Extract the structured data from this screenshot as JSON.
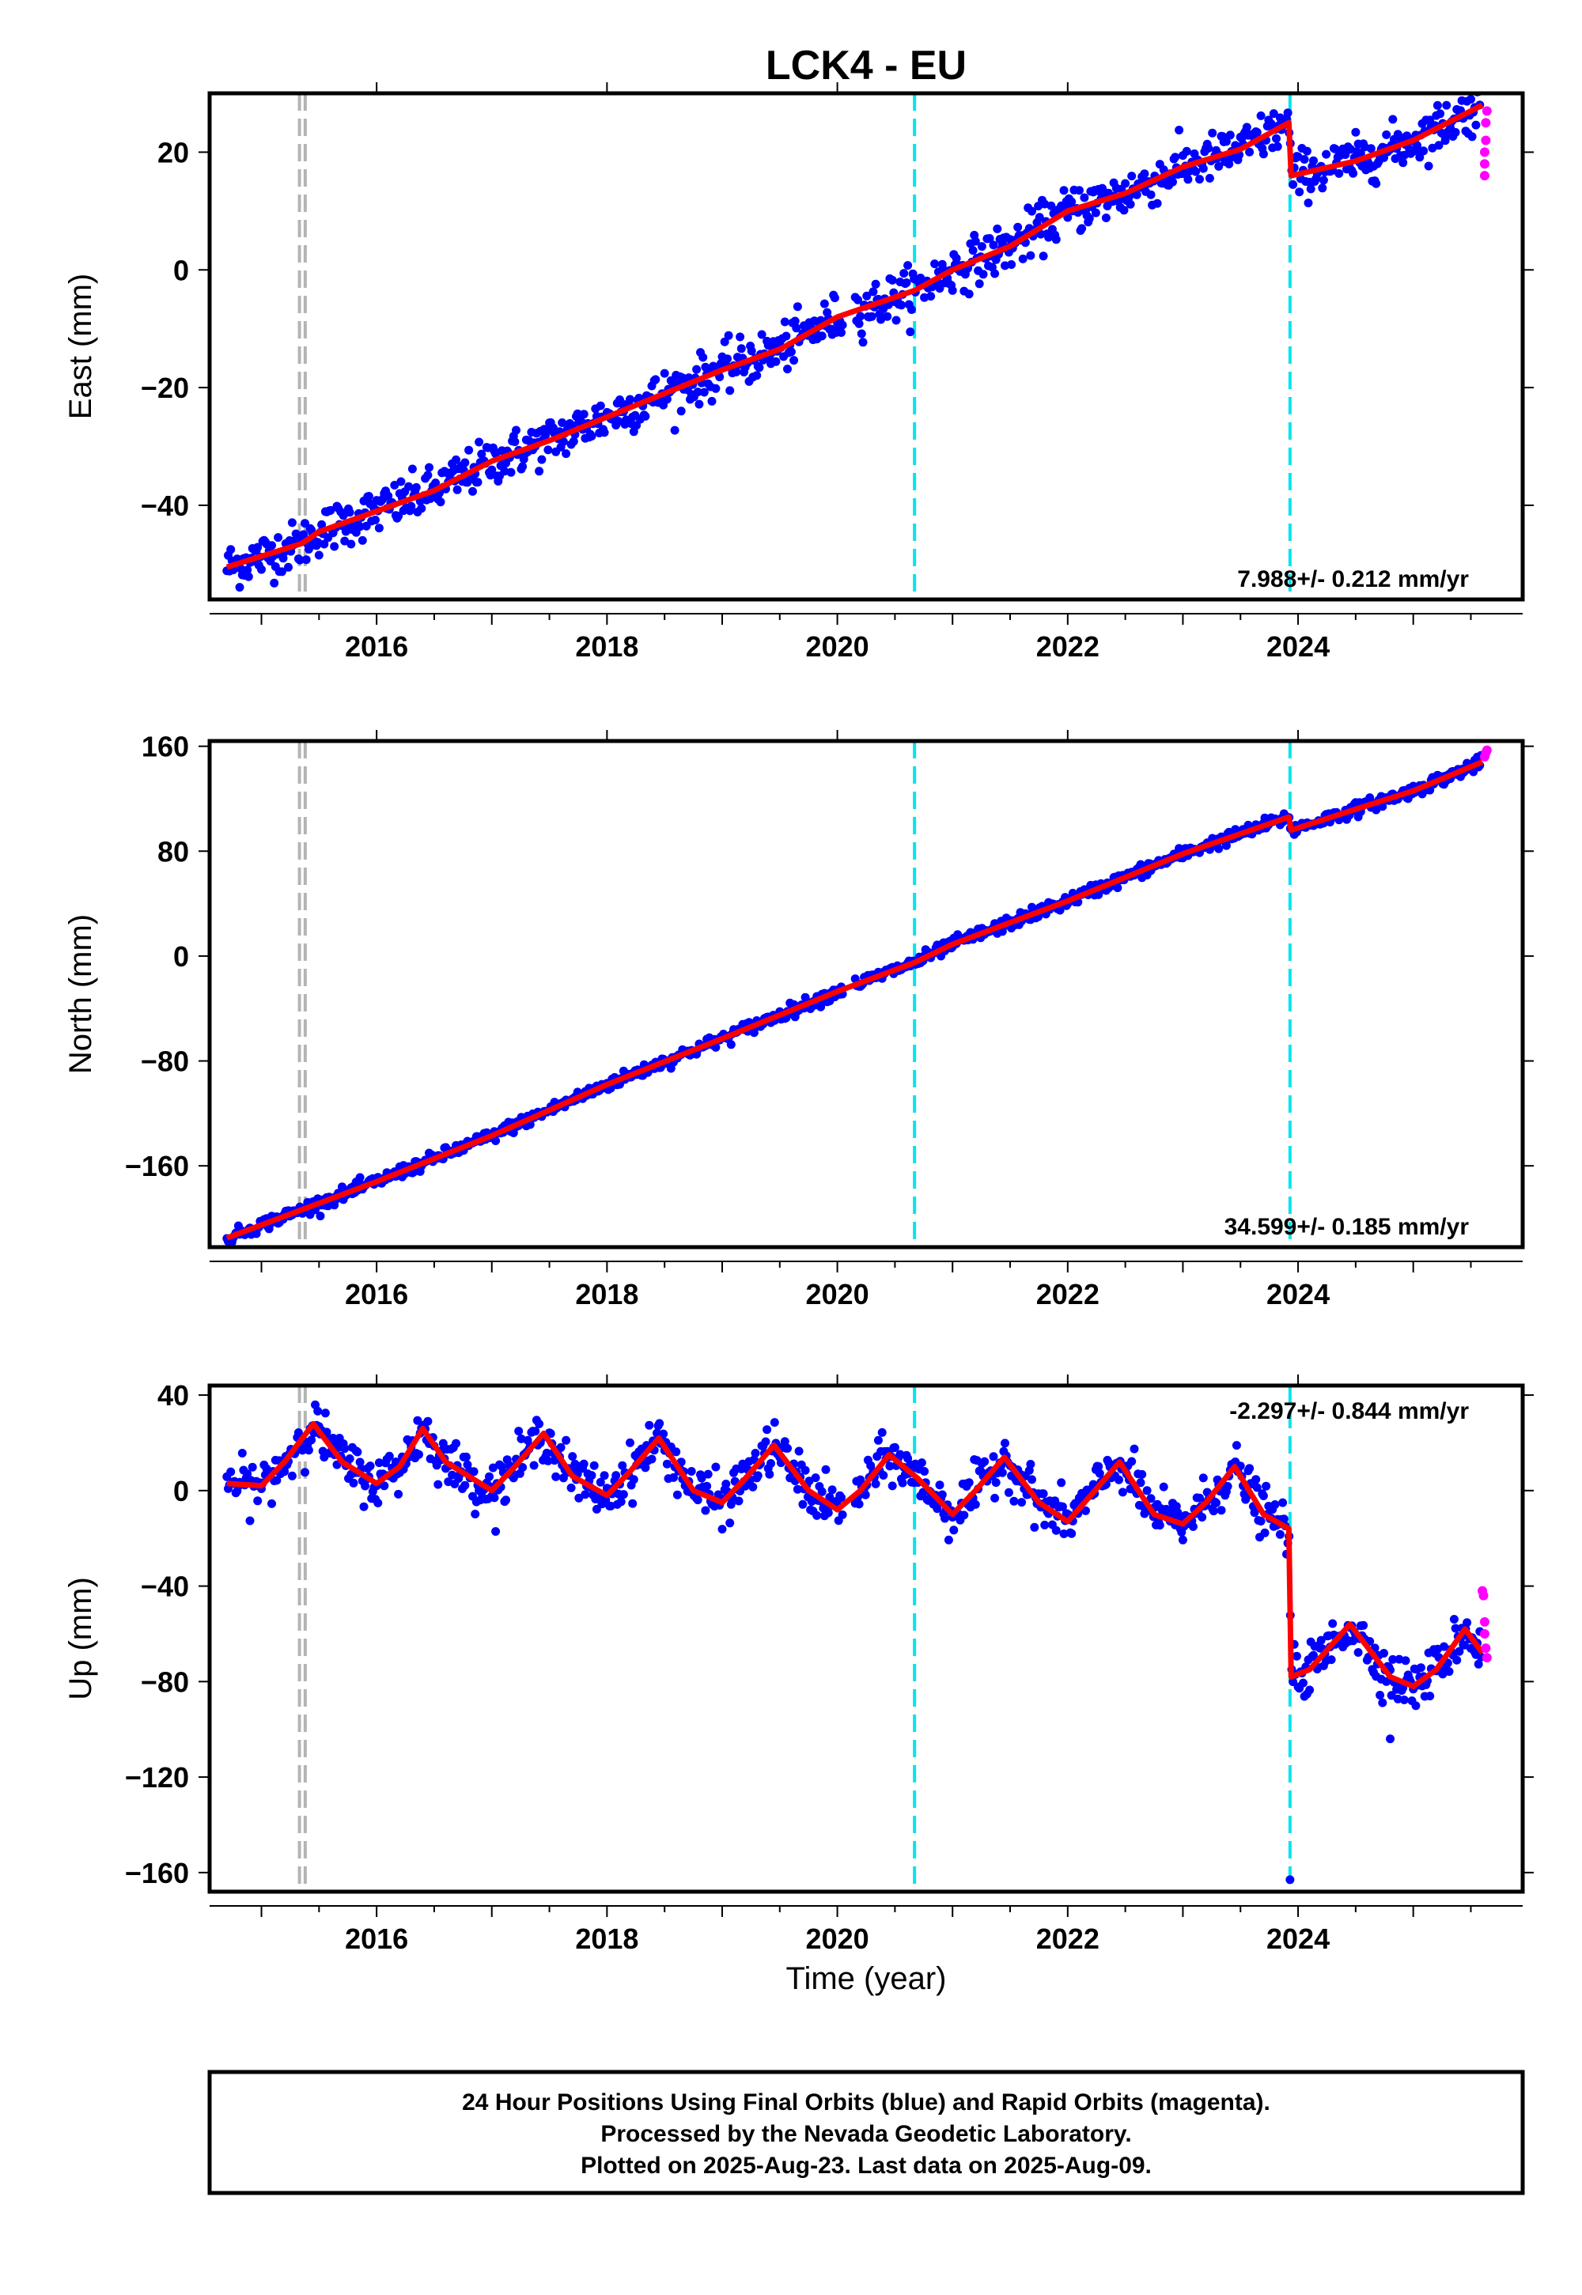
{
  "title": "LCK4 - EU",
  "colors": {
    "final_orbits": "#0000ff",
    "rapid_orbits": "#ff00ff",
    "model": "#ff0000",
    "offset_equipment": "#b4b4b4",
    "offset_event": "#00e5ee"
  },
  "chart_data": [
    {
      "type": "scatter",
      "name": "east",
      "ylabel": "East (mm)",
      "xlim": [
        2014.55,
        2025.95
      ],
      "ylim": [
        -56,
        30
      ],
      "xticks": [
        2016,
        2018,
        2020,
        2022,
        2024
      ],
      "yticks": [
        -40,
        -20,
        0,
        20
      ],
      "xtick_labels": [
        "2016",
        "2018",
        "2020",
        "2022",
        "2024"
      ],
      "ytick_labels": [
        "−40",
        "−20",
        "0",
        "20"
      ],
      "rate_label": "7.988+/- 0.212 mm/yr",
      "rate_position": "bottom-right",
      "offsets_equipment": [
        2015.33,
        2015.38
      ],
      "offsets_event": [
        2020.67,
        2023.93
      ],
      "trend": [
        [
          2014.7,
          -50.5
        ],
        [
          2015.35,
          -46.5
        ],
        [
          2015.5,
          -44.5
        ],
        [
          2016.0,
          -41.0
        ],
        [
          2016.5,
          -37.5
        ],
        [
          2017.0,
          -32.5
        ],
        [
          2017.5,
          -29.0
        ],
        [
          2018.0,
          -25.0
        ],
        [
          2018.5,
          -21.0
        ],
        [
          2019.0,
          -17.0
        ],
        [
          2019.5,
          -13.5
        ],
        [
          2020.0,
          -8.0
        ],
        [
          2020.67,
          -3.5
        ],
        [
          2021.0,
          0.0
        ],
        [
          2021.5,
          4.0
        ],
        [
          2022.0,
          10.0
        ],
        [
          2022.5,
          13.0
        ],
        [
          2023.0,
          17.5
        ],
        [
          2023.5,
          20.5
        ],
        [
          2023.92,
          25.0
        ],
        [
          2023.94,
          16.0
        ],
        [
          2024.5,
          18.5
        ],
        [
          2025.0,
          22.0
        ],
        [
          2025.6,
          28.0
        ]
      ],
      "noise": 2.0,
      "rapid": [
        [
          2025.62,
          16.0
        ],
        [
          2025.62,
          18.0
        ],
        [
          2025.62,
          20.0
        ],
        [
          2025.63,
          22.0
        ],
        [
          2025.63,
          25.0
        ],
        [
          2025.64,
          27.0
        ]
      ]
    },
    {
      "type": "scatter",
      "name": "north",
      "ylabel": "North (mm)",
      "xlim": [
        2014.55,
        2025.95
      ],
      "ylim": [
        -222,
        164
      ],
      "xticks": [
        2016,
        2018,
        2020,
        2022,
        2024
      ],
      "yticks": [
        -160,
        -80,
        0,
        80,
        160
      ],
      "xtick_labels": [
        "2016",
        "2018",
        "2020",
        "2022",
        "2024"
      ],
      "ytick_labels": [
        "−160",
        "−80",
        "0",
        "80",
        "160"
      ],
      "rate_label": "34.599+/- 0.185 mm/yr",
      "rate_position": "bottom-right",
      "offsets_equipment": [
        2015.33,
        2015.38
      ],
      "offsets_event": [
        2020.67,
        2023.93
      ],
      "trend": [
        [
          2014.7,
          -215.0
        ],
        [
          2016.0,
          -172.0
        ],
        [
          2017.0,
          -137.0
        ],
        [
          2018.0,
          -98.0
        ],
        [
          2019.0,
          -63.0
        ],
        [
          2020.0,
          -27.0
        ],
        [
          2020.67,
          -5.0
        ],
        [
          2021.0,
          9.0
        ],
        [
          2022.0,
          42.0
        ],
        [
          2023.0,
          78.0
        ],
        [
          2023.92,
          106.0
        ],
        [
          2023.94,
          96.0
        ],
        [
          2024.5,
          112.0
        ],
        [
          2025.0,
          126.0
        ],
        [
          2025.6,
          148.0
        ]
      ],
      "noise": 2.5,
      "rapid": [
        [
          2025.62,
          152.0
        ],
        [
          2025.63,
          155.0
        ],
        [
          2025.64,
          157.0
        ]
      ]
    },
    {
      "type": "scatter",
      "name": "up",
      "ylabel": "Up (mm)",
      "xlabel": "Time (year)",
      "xlim": [
        2014.55,
        2025.95
      ],
      "ylim": [
        -168,
        44
      ],
      "xticks": [
        2016,
        2018,
        2020,
        2022,
        2024
      ],
      "yticks": [
        -160,
        -120,
        -80,
        -40,
        0,
        40
      ],
      "xtick_labels": [
        "2016",
        "2018",
        "2020",
        "2022",
        "2024"
      ],
      "ytick_labels": [
        "−160",
        "−120",
        "−80",
        "−40",
        "0",
        "40"
      ],
      "rate_label": "-2.297+/- 0.844 mm/yr",
      "rate_position": "top-right",
      "offsets_equipment": [
        2015.33,
        2015.38
      ],
      "offsets_event": [
        2020.67,
        2023.93
      ],
      "trend": [
        [
          2014.7,
          3.0
        ],
        [
          2015.0,
          2.0
        ],
        [
          2015.2,
          12.0
        ],
        [
          2015.45,
          28.0
        ],
        [
          2015.7,
          12.0
        ],
        [
          2016.0,
          3.0
        ],
        [
          2016.2,
          10.0
        ],
        [
          2016.4,
          26.0
        ],
        [
          2016.6,
          12.0
        ],
        [
          2017.0,
          0.0
        ],
        [
          2017.2,
          10.0
        ],
        [
          2017.45,
          24.0
        ],
        [
          2017.7,
          6.0
        ],
        [
          2018.0,
          -2.0
        ],
        [
          2018.2,
          8.0
        ],
        [
          2018.45,
          22.0
        ],
        [
          2018.75,
          0.0
        ],
        [
          2019.0,
          -5.0
        ],
        [
          2019.2,
          5.0
        ],
        [
          2019.45,
          19.0
        ],
        [
          2019.75,
          0.0
        ],
        [
          2020.0,
          -8.0
        ],
        [
          2020.2,
          0.0
        ],
        [
          2020.45,
          15.0
        ],
        [
          2020.7,
          5.0
        ],
        [
          2021.0,
          -10.0
        ],
        [
          2021.2,
          0.0
        ],
        [
          2021.45,
          14.0
        ],
        [
          2021.75,
          -5.0
        ],
        [
          2022.0,
          -13.0
        ],
        [
          2022.2,
          -2.0
        ],
        [
          2022.45,
          12.0
        ],
        [
          2022.75,
          -10.0
        ],
        [
          2023.0,
          -14.0
        ],
        [
          2023.2,
          -5.0
        ],
        [
          2023.45,
          10.0
        ],
        [
          2023.7,
          -10.0
        ],
        [
          2023.92,
          -16.0
        ],
        [
          2023.94,
          -78.0
        ],
        [
          2024.1,
          -75.0
        ],
        [
          2024.45,
          -56.0
        ],
        [
          2024.8,
          -78.0
        ],
        [
          2025.0,
          -82.0
        ],
        [
          2025.2,
          -75.0
        ],
        [
          2025.45,
          -58.0
        ],
        [
          2025.6,
          -68.0
        ]
      ],
      "noise": 5.0,
      "outliers": [
        [
          2023.93,
          -163.0
        ],
        [
          2024.8,
          -104.0
        ]
      ],
      "rapid": [
        [
          2025.6,
          -42.0
        ],
        [
          2025.61,
          -44.0
        ],
        [
          2025.62,
          -55.0
        ],
        [
          2025.62,
          -60.0
        ],
        [
          2025.63,
          -66.0
        ],
        [
          2025.64,
          -70.0
        ]
      ]
    }
  ],
  "caption": {
    "line1": "24 Hour Positions Using Final Orbits (blue) and Rapid Orbits (magenta).",
    "line2": "Processed by the Nevada Geodetic Laboratory.",
    "line3": "Plotted on 2025-Aug-23. Last data on 2025-Aug-09."
  }
}
